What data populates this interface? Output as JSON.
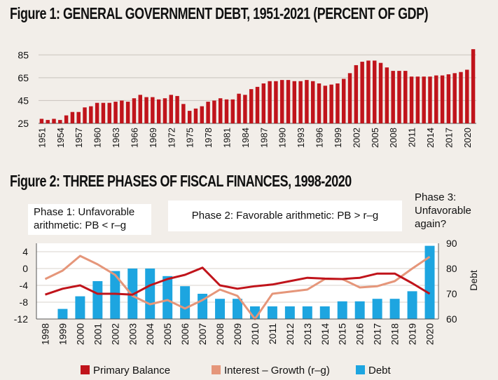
{
  "figure1": {
    "title": "Figure 1: GENERAL GOVERNMENT DEBT, 1951-2021 (PERCENT OF GDP)"
  },
  "figure2": {
    "title": "Figure 2: THREE PHASES OF FISCAL FINANCES, 1998-2020",
    "phase1": "Phase 1: Unfavorable arithmetic: PB < r–g",
    "phase2": "Phase 2: Favorable arithmetic: PB > r–g",
    "phase3": "Phase 3: Unfavorable again?"
  },
  "colors": {
    "background": "#f2eee9",
    "debt_red": "#c0141b",
    "primary_balance": "#c0141b",
    "interest_growth": "#e5967a",
    "debt_blue": "#1da5e0"
  },
  "chart_data": [
    {
      "type": "bar",
      "title": "Figure 1: GENERAL GOVERNMENT DEBT, 1951-2021 (PERCENT OF GDP)",
      "x": [
        1951,
        1952,
        1953,
        1954,
        1955,
        1956,
        1957,
        1958,
        1959,
        1960,
        1961,
        1962,
        1963,
        1964,
        1965,
        1966,
        1967,
        1968,
        1969,
        1970,
        1971,
        1972,
        1973,
        1974,
        1975,
        1976,
        1977,
        1978,
        1979,
        1980,
        1981,
        1982,
        1983,
        1984,
        1985,
        1986,
        1987,
        1988,
        1989,
        1990,
        1991,
        1992,
        1993,
        1994,
        1995,
        1996,
        1997,
        1998,
        1999,
        2000,
        2001,
        2002,
        2003,
        2004,
        2005,
        2006,
        2007,
        2008,
        2009,
        2010,
        2011,
        2012,
        2013,
        2014,
        2015,
        2016,
        2017,
        2018,
        2019,
        2020,
        2021
      ],
      "values": [
        29,
        28,
        29,
        28,
        32,
        35,
        35,
        39,
        40,
        43,
        43,
        43,
        44,
        45,
        44,
        47,
        50,
        48,
        48,
        46,
        47,
        50,
        49,
        42,
        36,
        38,
        40,
        44,
        45,
        47,
        46,
        46,
        51,
        50,
        55,
        57,
        60,
        62,
        62,
        63,
        63,
        62,
        62,
        63,
        62,
        60,
        58,
        59,
        60,
        64,
        69,
        76,
        79,
        80,
        80,
        78,
        74,
        71,
        71,
        71,
        66,
        66,
        66,
        66,
        67,
        67,
        68,
        69,
        70,
        72,
        90
      ],
      "xtick_labels": [
        "1951",
        "1954",
        "1957",
        "1960",
        "1963",
        "1966",
        "1969",
        "1972",
        "1975",
        "1978",
        "1981",
        "1984",
        "1987",
        "1990",
        "1993",
        "1996",
        "1999",
        "2002",
        "2005",
        "2008",
        "2011",
        "2014",
        "2017",
        "2020"
      ],
      "yticks": [
        25,
        45,
        65,
        85
      ],
      "ylim": [
        25,
        95
      ],
      "grid": true
    },
    {
      "type": "bar+line",
      "title": "Figure 2: THREE PHASES OF FISCAL FINANCES, 1998-2020",
      "categories": [
        "1998",
        "1999",
        "2000",
        "2001",
        "2002",
        "2003",
        "2004",
        "2005",
        "2006",
        "2007",
        "2008",
        "2009",
        "2010",
        "2011",
        "2012",
        "2013",
        "2014",
        "2015",
        "2016",
        "2017",
        "2018",
        "2019",
        "2020"
      ],
      "y_left_ticks": [
        4,
        0,
        -4,
        -8,
        -12
      ],
      "y_left_lim": [
        -12,
        6
      ],
      "y_right_ticks": [
        60,
        70,
        80,
        90
      ],
      "y_right_lim": [
        60,
        90
      ],
      "y_right_label": "Debt",
      "series": [
        {
          "name": "Primary Balance",
          "axis": "left",
          "kind": "line",
          "values": [
            -6.2,
            -4.8,
            -4.0,
            -6.0,
            -6.0,
            -6.2,
            -4.0,
            -2.5,
            -1.5,
            0.2,
            -4.0,
            -4.8,
            -4.2,
            -3.8,
            -3.0,
            -2.2,
            -2.4,
            -2.5,
            -2.2,
            -1.2,
            -1.2,
            -3.5,
            -6.0
          ]
        },
        {
          "name": "Interest – Growth (r–g)",
          "axis": "left",
          "kind": "line",
          "values": [
            -2.5,
            -0.5,
            3.0,
            1.0,
            -1.5,
            -6.5,
            -8.5,
            -7.5,
            -9.5,
            -7.5,
            -5.0,
            -6.5,
            -12.0,
            -6.0,
            -5.5,
            -5.0,
            -2.5,
            -2.5,
            -4.5,
            -4.2,
            -3.0,
            0.0,
            2.8
          ]
        },
        {
          "name": "Debt",
          "axis": "right",
          "kind": "bar",
          "values": [
            60,
            64,
            69,
            75,
            79,
            80,
            80,
            77,
            73,
            70,
            68,
            68,
            65,
            65,
            65,
            65,
            65,
            67,
            67,
            68,
            68,
            71,
            89
          ]
        }
      ],
      "legend_position": "bottom",
      "grid": true
    }
  ]
}
